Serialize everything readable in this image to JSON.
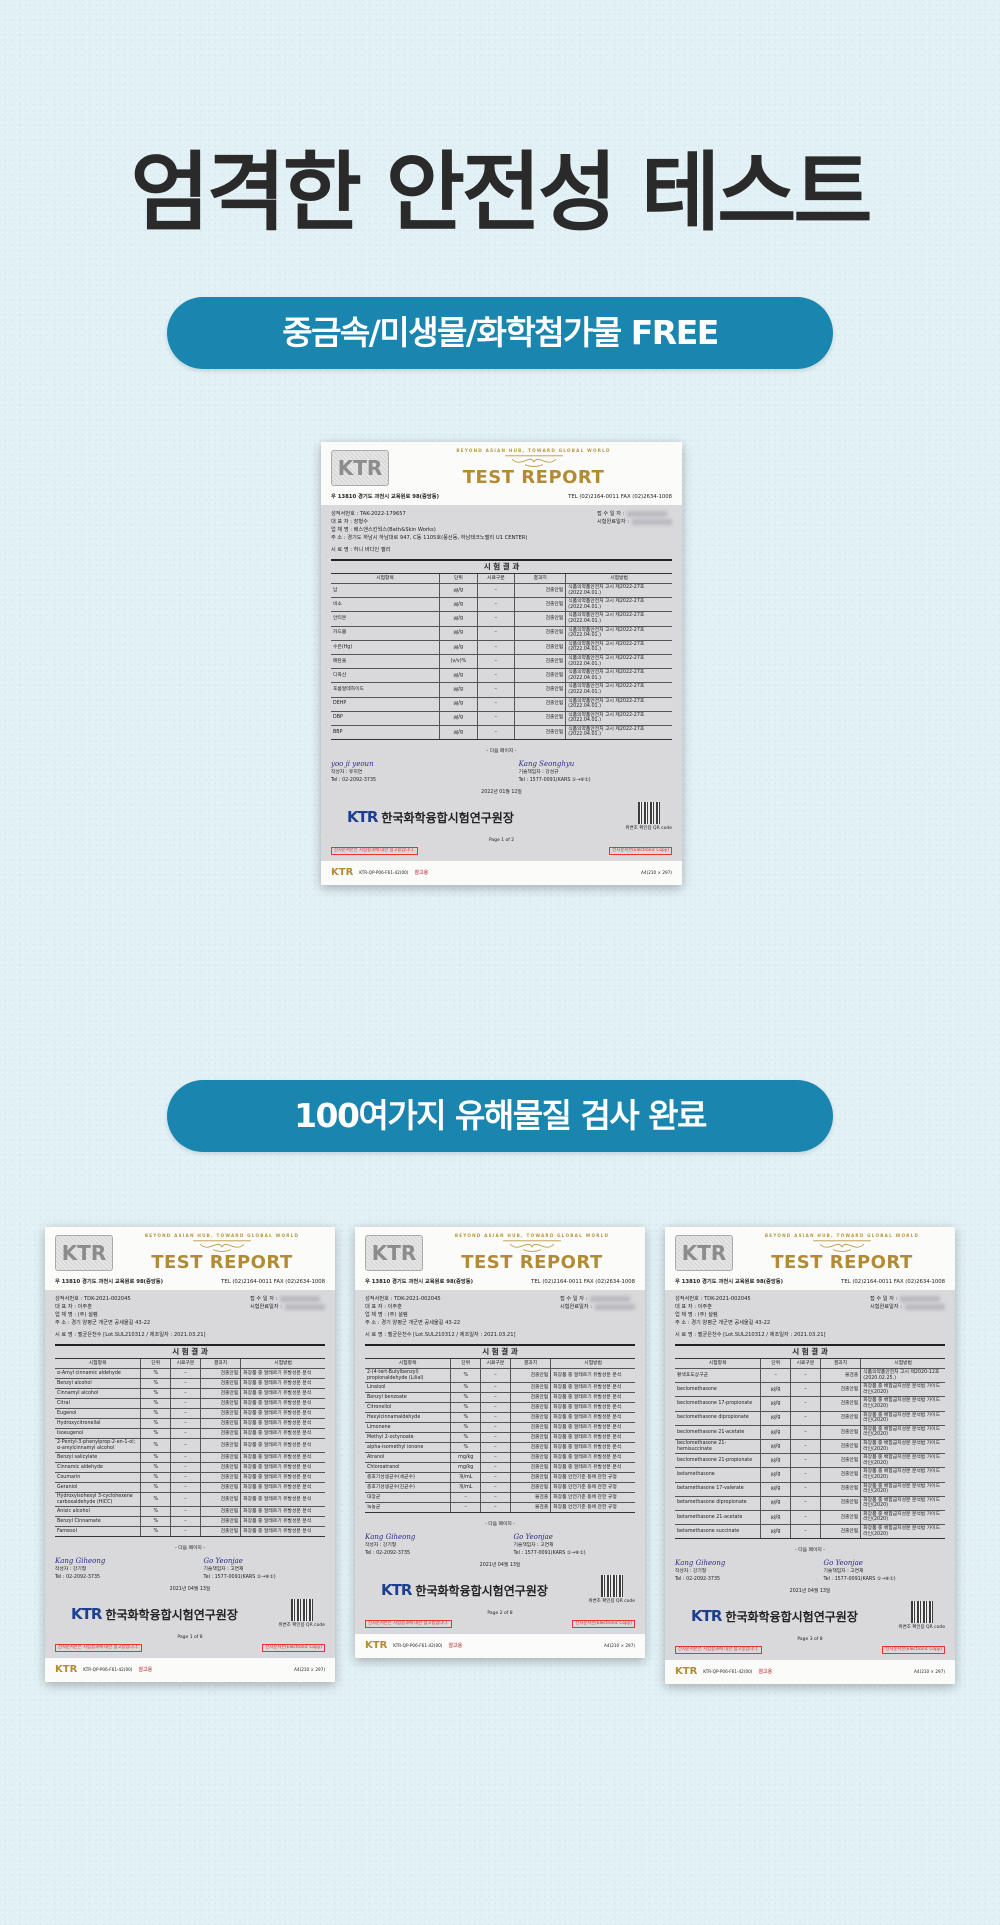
{
  "page": {
    "title": "엄격한 안전성 테스트"
  },
  "pills": [
    {
      "label": "중금속/미생물/화학첨가물 FREE"
    },
    {
      "label": "100여가지 유해물질 검사 완료"
    }
  ],
  "colors": {
    "pill": "#1a86b0",
    "title": "#2a2a2a",
    "report_gold": "#b38b35",
    "ktr_blue": "#1d3f8f"
  },
  "documents": [
    {
      "logo": "KTR",
      "slogan": "BEYOND ASIAN HUB, TOWARD GLOBAL WORLD",
      "title": "TEST REPORT",
      "address": "우 13810 경기도 과천시 교육원로 98(중앙동)",
      "tel": "TEL (02)2164-0011   FAX (02)2634-1008",
      "info": [
        "성적서번호 : TAK-2022-179657",
        "대 표 자 : 장형수",
        "업 체 명 : 배스앤스킨웍스(Bath&Skin Works)",
        "주 소 : 경기도 하남시 하남대로 947, C동 1105호(풍산동, 하남테크노밸리 U1 CENTER)"
      ],
      "info_right": [
        "접 수 일 자 :",
        "시험완료일자 :"
      ],
      "sample": "시 료 명 : 허니 바디인 젤리",
      "results_heading": "시 험 결 과",
      "columns": [
        "시험항목",
        "단위",
        "시료구분",
        "결과치",
        "시험방법"
      ],
      "rows": [
        [
          "납",
          "㎍/g",
          "–",
          "검출안됨",
          "식품의약품안전처 고시 제2022-27호(2022.04.01.)"
        ],
        [
          "비소",
          "㎍/g",
          "–",
          "검출안됨",
          "식품의약품안전처 고시 제2022-27호(2022.04.01.)"
        ],
        [
          "안티몬",
          "㎍/g",
          "–",
          "검출안됨",
          "식품의약품안전처 고시 제2022-27호(2022.04.01.)"
        ],
        [
          "카드뮴",
          "㎍/g",
          "–",
          "검출안됨",
          "식품의약품안전처 고시 제2022-27호(2022.04.01.)"
        ],
        [
          "수은(Hg)",
          "㎍/g",
          "–",
          "검출안됨",
          "식품의약품안전처 고시 제2022-27호(2022.04.01.)"
        ],
        [
          "메탄올",
          "(v/v)%",
          "–",
          "검출안됨",
          "식품의약품안전처 고시 제2022-27호(2022.04.01.)"
        ],
        [
          "디옥산",
          "㎍/g",
          "–",
          "검출안됨",
          "식품의약품안전처 고시 제2022-27호(2022.04.01.)"
        ],
        [
          "포름알데하이드",
          "㎍/g",
          "–",
          "검출안됨",
          "식품의약품안전처 고시 제2022-27호(2022.04.01.)"
        ],
        [
          "DEHP",
          "㎍/g",
          "–",
          "검출안됨",
          "식품의약품안전처 고시 제2022-27호(2022.04.01.)"
        ],
        [
          "DBP",
          "㎍/g",
          "–",
          "검출안됨",
          "식품의약품안전처 고시 제2022-27호(2022.04.01.)"
        ],
        [
          "BBP",
          "㎍/g",
          "–",
          "검출안됨",
          "식품의약품안전처 고시 제2022-27호(2022.04.01.)"
        ]
      ],
      "next_page": "- 다음 페이지 -",
      "signer_left": {
        "signature": "yoo ji yeoun",
        "role": "작성자 : 유지연",
        "tel": "Tel : 02-2092-3735"
      },
      "signer_right": {
        "signature": "Kang Seonghyu",
        "role": "기술책임자 : 강성규",
        "tel": "Tel : 1577-0091(KARS ①→⑧①)"
      },
      "date": "2022년 01월 12일",
      "org_logo": "KTR",
      "org": "한국화학융합시험연구원장",
      "qr_caption": "위변조 확인용 QR code",
      "page_label": "Page  1  of  2",
      "red_left": "전자문서본은 시험결과에 대한 참고용입니다.",
      "red_right": "전자문서본(Electronic Copy)",
      "footer_logo": "KTR",
      "footer_code": "KTR-QP-P06-F61-42(00)",
      "footer_size": "A4(210 × 297)",
      "watermark": "참고용"
    },
    {
      "logo": "KTR",
      "slogan": "BEYOND ASIAN HUB, TOWARD GLOBAL WORLD",
      "title": "TEST REPORT",
      "address": "우 13810 경기도 과천시 교육원로 98(중앙동)",
      "tel": "TEL (02)2164-0011   FAX (02)2634-1008",
      "info": [
        "성적서번호 : TDK-2021-002045",
        "대 표 자 : 이주훈",
        "업 체 명 : (주) 설렘",
        "주 소 : 경기 양평군 개군면 공세울길 43-22"
      ],
      "info_right": [
        "접 수 일 자 :",
        "시험완료일자 :"
      ],
      "sample": "시 료 명 : 멜균은천수 [Lot.SUL210312 / 제조일자 : 2021.03.21]",
      "results_heading": "시 험 결 과",
      "columns": [
        "시험항목",
        "단위",
        "시료구분",
        "결과치",
        "시험방법"
      ],
      "rows": [
        [
          "α-Amyl cinnamic aldehyde",
          "%",
          "–",
          "검출안됨",
          "화장품 중 알레르기 유발성분 분석"
        ],
        [
          "Benzyl alcohol",
          "%",
          "–",
          "검출안됨",
          "화장품 중 알레르기 유발성분 분석"
        ],
        [
          "Cinnamyl alcohol",
          "%",
          "–",
          "검출안됨",
          "화장품 중 알레르기 유발성분 분석"
        ],
        [
          "Citral",
          "%",
          "–",
          "검출안됨",
          "화장품 중 알레르기 유발성분 분석"
        ],
        [
          "Eugenol",
          "%",
          "–",
          "검출안됨",
          "화장품 중 알레르기 유발성분 분석"
        ],
        [
          "Hydroxycitronellal",
          "%",
          "–",
          "검출안됨",
          "화장품 중 알레르기 유발성분 분석"
        ],
        [
          "Isoeugenol",
          "%",
          "–",
          "검출안됨",
          "화장품 중 알레르기 유발성분 분석"
        ],
        [
          "2-Pentyl-3-phenylprop-2-en-1-ol; α-amylcinnamyl alcohol",
          "%",
          "–",
          "검출안됨",
          "화장품 중 알레르기 유발성분 분석"
        ],
        [
          "Benzyl salicylate",
          "%",
          "–",
          "검출안됨",
          "화장품 중 알레르기 유발성분 분석"
        ],
        [
          "Cinnamic aldehyde",
          "%",
          "–",
          "검출안됨",
          "화장품 중 알레르기 유발성분 분석"
        ],
        [
          "Coumarin",
          "%",
          "–",
          "검출안됨",
          "화장품 중 알레르기 유발성분 분석"
        ],
        [
          "Geraniol",
          "%",
          "–",
          "검출안됨",
          "화장품 중 알레르기 유발성분 분석"
        ],
        [
          "Hydroxyisohexyl 3-cyclohexene carboxaldehyde (HICC)",
          "%",
          "–",
          "검출안됨",
          "화장품 중 알레르기 유발성분 분석"
        ],
        [
          "Anisic alcohol",
          "%",
          "–",
          "검출안됨",
          "화장품 중 알레르기 유발성분 분석"
        ],
        [
          "Benzyl Cinnamate",
          "%",
          "–",
          "검출안됨",
          "화장품 중 알레르기 유발성분 분석"
        ],
        [
          "Farnesol",
          "%",
          "–",
          "검출안됨",
          "화장품 중 알레르기 유발성분 분석"
        ]
      ],
      "next_page": "- 다음 페이지 -",
      "signer_left": {
        "signature": "Kang Giheong",
        "role": "작성자 : 강기형",
        "tel": "Tel : 02-2092-3735"
      },
      "signer_right": {
        "signature": "Go Yeonjae",
        "role": "기술책임자 : 고연재",
        "tel": "Tel : 1577-0091(KARS ①→⑧①)"
      },
      "date": "2021년 04월 13일",
      "org_logo": "KTR",
      "org": "한국화학융합시험연구원장",
      "qr_caption": "위변조 확인용 QR code",
      "page_label": "Page  1  of  8",
      "red_left": "전자문서본은 시험결과에 대한 참고용입니다.",
      "red_right": "전자문서본(Electronic Copy)",
      "footer_logo": "KTR",
      "footer_code": "KTR-QP-P06-F61-42(00)",
      "footer_size": "A4(210 × 297)",
      "watermark": "참고용"
    },
    {
      "logo": "KTR",
      "slogan": "BEYOND ASIAN HUB, TOWARD GLOBAL WORLD",
      "title": "TEST REPORT",
      "address": "우 13810 경기도 과천시 교육원로 98(중앙동)",
      "tel": "TEL (02)2164-0011   FAX (02)2634-1008",
      "info": [
        "성적서번호 : TDK-2021-002045",
        "대 표 자 : 이주훈",
        "업 체 명 : (주) 설렘",
        "주 소 : 경기 양평군 개군면 공세울길 43-22"
      ],
      "info_right": [
        "접 수 일 자 :",
        "시험완료일자 :"
      ],
      "sample": "시 료 명 : 멜균은천수 [Lot.SUL210312 / 제조일자 : 2021.03.21]",
      "results_heading": "시 험 결 과",
      "columns": [
        "시험항목",
        "단위",
        "시료구분",
        "결과치",
        "시험방법"
      ],
      "rows": [
        [
          "2-(4-tert-Butylbenzyl) propionaldehyde (Lilial)",
          "%",
          "–",
          "검출안됨",
          "화장품 중 알레르기 유발성분 분석"
        ],
        [
          "Linalool",
          "%",
          "–",
          "검출안됨",
          "화장품 중 알레르기 유발성분 분석"
        ],
        [
          "Benzyl benzoate",
          "%",
          "–",
          "검출안됨",
          "화장품 중 알레르기 유발성분 분석"
        ],
        [
          "Citronellol",
          "%",
          "–",
          "검출안됨",
          "화장품 중 알레르기 유발성분 분석"
        ],
        [
          "Hexylcinnamaldehyde",
          "%",
          "–",
          "검출안됨",
          "화장품 중 알레르기 유발성분 분석"
        ],
        [
          "Limonene",
          "%",
          "–",
          "검출안됨",
          "화장품 중 알레르기 유발성분 분석"
        ],
        [
          "Methyl 2-octynoate",
          "%",
          "–",
          "검출안됨",
          "화장품 중 알레르기 유발성분 분석"
        ],
        [
          "alpha-isomethyl ionone",
          "%",
          "–",
          "검출안됨",
          "화장품 중 알레르기 유발성분 분석"
        ],
        [
          "Atranol",
          "mg/kg",
          "–",
          "검출안됨",
          "화장품 중 알레르기 유발성분 분석"
        ],
        [
          "Chloroatranol",
          "mg/kg",
          "–",
          "검출안됨",
          "화장품 중 알레르기 유발성분 분석"
        ],
        [
          "총호기성생균수(세균수)",
          "개/mL",
          "–",
          "검출안됨",
          "화장품 안전기준 등에 관한 규정"
        ],
        [
          "총호기성생균수(진균수)",
          "개/mL",
          "–",
          "검출안됨",
          "화장품 안전기준 등에 관한 규정"
        ],
        [
          "대장균",
          "–",
          "–",
          "불검출",
          "화장품 안전기준 등에 관한 규정"
        ],
        [
          "녹농균",
          "–",
          "–",
          "불검출",
          "화장품 안전기준 등에 관한 규정"
        ]
      ],
      "next_page": "- 다음 페이지 -",
      "signer_left": {
        "signature": "Kang Giheong",
        "role": "작성자 : 강기형",
        "tel": "Tel : 02-2092-3735"
      },
      "signer_right": {
        "signature": "Go Yeonjae",
        "role": "기술책임자 : 고연재",
        "tel": "Tel : 1577-0091(KARS ①→⑧①)"
      },
      "date": "2021년 04월 13일",
      "org_logo": "KTR",
      "org": "한국화학융합시험연구원장",
      "qr_caption": "위변조 확인용 QR code",
      "page_label": "Page  2  of  8",
      "red_left": "전자문서본은 시험결과에 대한 참고용입니다.",
      "red_right": "전자문서본(Electronic Copy)",
      "footer_logo": "KTR",
      "footer_code": "KTR-QP-P06-F61-42(00)",
      "footer_size": "A4(210 × 297)",
      "watermark": "참고용"
    },
    {
      "logo": "KTR",
      "slogan": "BEYOND ASIAN HUB, TOWARD GLOBAL WORLD",
      "title": "TEST REPORT",
      "address": "우 13810 경기도 과천시 교육원로 98(중앙동)",
      "tel": "TEL (02)2164-0011   FAX (02)2634-1008",
      "info": [
        "성적서번호 : TDK-2021-002045",
        "대 표 자 : 이주훈",
        "업 체 명 : (주) 설렘",
        "주 소 : 경기 양평군 개군면 공세울길 43-22"
      ],
      "info_right": [
        "접 수 일 자 :",
        "시험완료일자 :"
      ],
      "sample": "시 료 명 : 멜균은천수 [Lot.SUL210312 / 제조일자 : 2021.03.21]",
      "results_heading": "시 험 결 과",
      "columns": [
        "시험항목",
        "단위",
        "시료구분",
        "결과치",
        "시험방법"
      ],
      "rows": [
        [
          "황색포도상구균",
          "–",
          "–",
          "불검출",
          "식품의약품안전처 고시 제2020-12호(2020.02.25.)"
        ],
        [
          "beclomethasone",
          "㎍/g",
          "–",
          "검출안됨",
          "화장품 중 배합금지성분 분석법 가이드라인(2020)"
        ],
        [
          "beclomethasone 17-propionate",
          "㎍/g",
          "–",
          "검출안됨",
          "화장품 중 배합금지성분 분석법 가이드라인(2020)"
        ],
        [
          "beclomethasone dipropionate",
          "㎍/g",
          "–",
          "검출안됨",
          "화장품 중 배합금지성분 분석법 가이드라인(2020)"
        ],
        [
          "beclomethasone 21-acetate",
          "㎍/g",
          "–",
          "검출안됨",
          "화장품 중 배합금지성분 분석법 가이드라인(2020)"
        ],
        [
          "beclomethasone 21-hemisuccinate",
          "㎍/g",
          "–",
          "검출안됨",
          "화장품 중 배합금지성분 분석법 가이드라인(2020)"
        ],
        [
          "beclomethasone 21-propionate",
          "㎍/g",
          "–",
          "검출안됨",
          "화장품 중 배합금지성분 분석법 가이드라인(2020)"
        ],
        [
          "betamethasone",
          "㎍/g",
          "–",
          "검출안됨",
          "화장품 중 배합금지성분 분석법 가이드라인(2020)"
        ],
        [
          "betamethasone 17-valerate",
          "㎍/g",
          "–",
          "검출안됨",
          "화장품 중 배합금지성분 분석법 가이드라인(2020)"
        ],
        [
          "betamethasone dipropionate",
          "㎍/g",
          "–",
          "검출안됨",
          "화장품 중 배합금지성분 분석법 가이드라인(2020)"
        ],
        [
          "betamethasone 21-acetate",
          "㎍/g",
          "–",
          "검출안됨",
          "화장품 중 배합금지성분 분석법 가이드라인(2020)"
        ],
        [
          "betamethasone succinate",
          "㎍/g",
          "–",
          "검출안됨",
          "화장품 중 배합금지성분 분석법 가이드라인(2020)"
        ]
      ],
      "next_page": "- 다음 페이지 -",
      "signer_left": {
        "signature": "Kang Giheong",
        "role": "작성자 : 강기형",
        "tel": "Tel : 02-2092-3735"
      },
      "signer_right": {
        "signature": "Go Yeonjae",
        "role": "기술책임자 : 고연재",
        "tel": "Tel : 1577-0091(KARS ①→⑧①)"
      },
      "date": "2021년 04월 13일",
      "org_logo": "KTR",
      "org": "한국화학융합시험연구원장",
      "qr_caption": "위변조 확인용 QR code",
      "page_label": "Page  3  of  8",
      "red_left": "전자문서본은 시험결과에 대한 참고용입니다.",
      "red_right": "전자문서본(Electronic Copy)",
      "footer_logo": "KTR",
      "footer_code": "KTR-QP-P06-F61-42(00)",
      "footer_size": "A4(210 × 297)",
      "watermark": "참고용"
    }
  ]
}
